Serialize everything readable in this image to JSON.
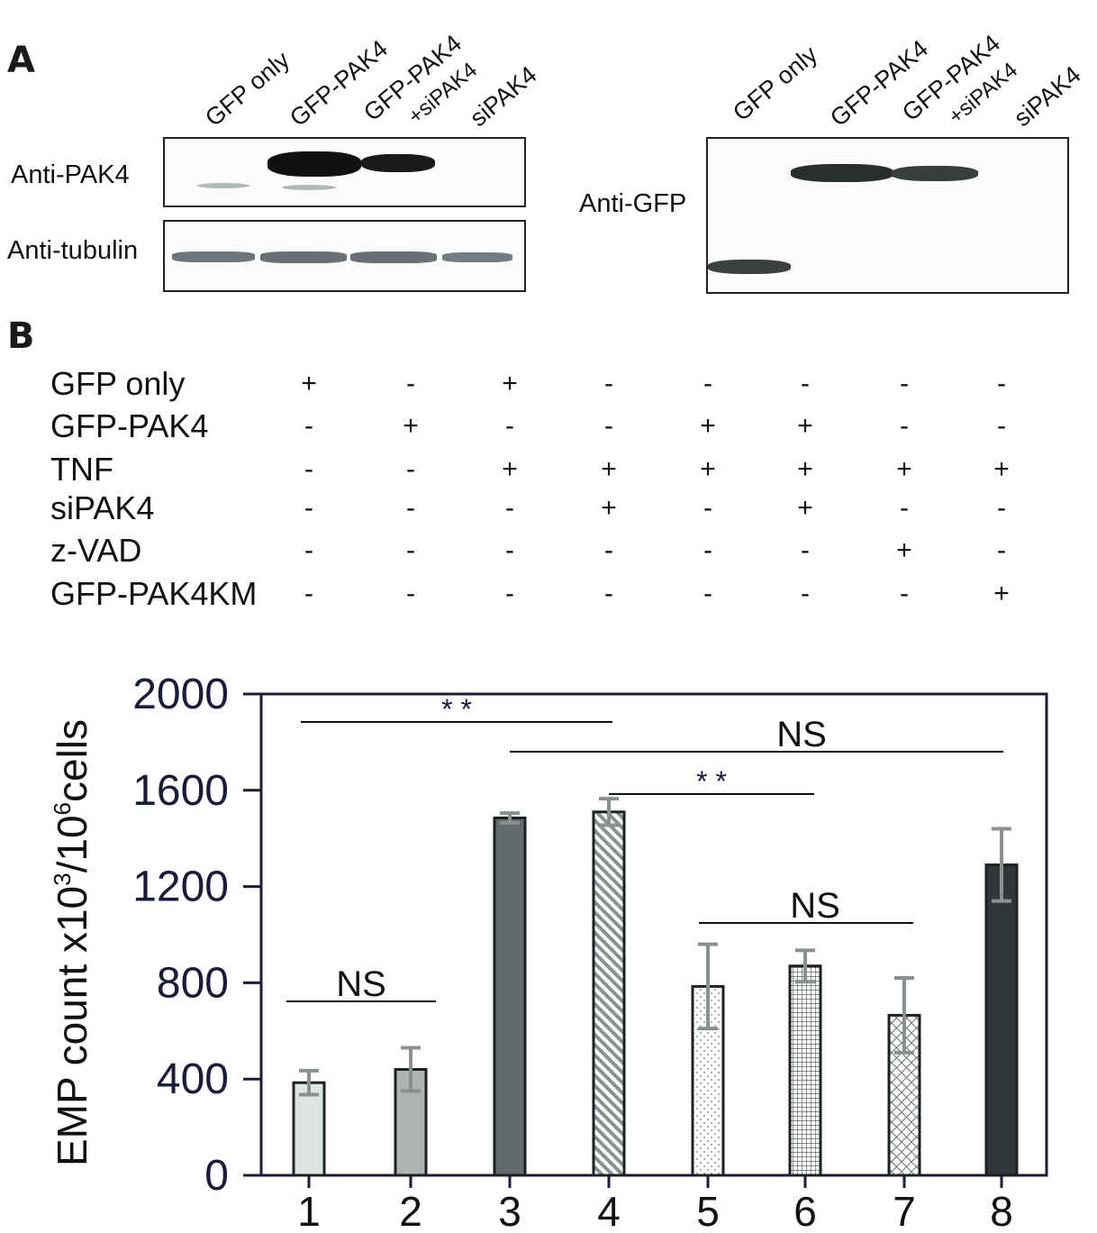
{
  "panels": {
    "a": "A",
    "b": "B"
  },
  "blot_left": {
    "lanes": [
      {
        "label": "GFP only"
      },
      {
        "label": "GFP-PAK4"
      },
      {
        "label": "GFP-PAK4",
        "sub": "+siPAK4"
      },
      {
        "label": "siPAK4"
      }
    ],
    "row_labels": [
      "Anti-PAK4",
      "Anti-tubulin"
    ]
  },
  "blot_right": {
    "lanes": [
      {
        "label": "GFP only"
      },
      {
        "label": "GFP-PAK4"
      },
      {
        "label": "GFP-PAK4",
        "sub": "+siPAK4"
      },
      {
        "label": "siPAK4"
      }
    ],
    "row_label": "Anti-GFP"
  },
  "treatments": [
    {
      "name": "GFP only",
      "signs": [
        "+",
        "-",
        "+",
        "-",
        "-",
        "-",
        "-",
        "-"
      ]
    },
    {
      "name": "GFP-PAK4",
      "signs": [
        "-",
        "+",
        "-",
        "-",
        "+",
        "+",
        "-",
        "-"
      ]
    },
    {
      "name": "TNF",
      "signs": [
        "-",
        "-",
        "+",
        "+",
        "+",
        "+",
        "+",
        "+"
      ]
    },
    {
      "name": "siPAK4",
      "signs": [
        "-",
        "-",
        "-",
        "+",
        "-",
        "+",
        "-",
        "-"
      ]
    },
    {
      "name": "z-VAD",
      "signs": [
        "-",
        "-",
        "-",
        "-",
        "-",
        "-",
        "+",
        "-"
      ]
    },
    {
      "name": "GFP-PAK4KM",
      "signs": [
        "-",
        "-",
        "-",
        "-",
        "-",
        "-",
        "-",
        "+"
      ]
    }
  ],
  "chart_data": {
    "type": "bar",
    "categories": [
      "1",
      "2",
      "3",
      "4",
      "5",
      "6",
      "7",
      "8"
    ],
    "values": [
      385,
      440,
      1485,
      1510,
      785,
      870,
      665,
      1290
    ],
    "errors": [
      50,
      90,
      20,
      55,
      175,
      65,
      155,
      150
    ],
    "ylabel": "EMP count x10³/10⁶cells",
    "ylabel_parts": {
      "pre": "EMP count x10",
      "sup1": "3",
      "mid": "/10",
      "sup2": "6",
      "post": "cells"
    },
    "ylim": [
      0,
      2000
    ],
    "yticks": [
      0,
      400,
      800,
      1200,
      1600,
      2000
    ],
    "fills": [
      "light-gray",
      "mid-gray",
      "dark-gray",
      "diagonal-hatch",
      "dots",
      "grid",
      "crosshatch",
      "charcoal"
    ],
    "colors": {
      "light": "#dfe3e2",
      "mid": "#aeb4b3",
      "dark": "#636b6d",
      "charcoal": "#2f373b",
      "error": "#8a9090",
      "axis": "#1a1a3a"
    },
    "annotations": [
      {
        "from": "1",
        "to": "4",
        "label": "* *"
      },
      {
        "from": "3",
        "to": "8",
        "label": "NS"
      },
      {
        "from": "4",
        "to": "6",
        "label": "* *"
      },
      {
        "from": "5",
        "to": "7",
        "label": "NS"
      },
      {
        "from": "1",
        "to": "2",
        "label": "NS"
      }
    ]
  }
}
